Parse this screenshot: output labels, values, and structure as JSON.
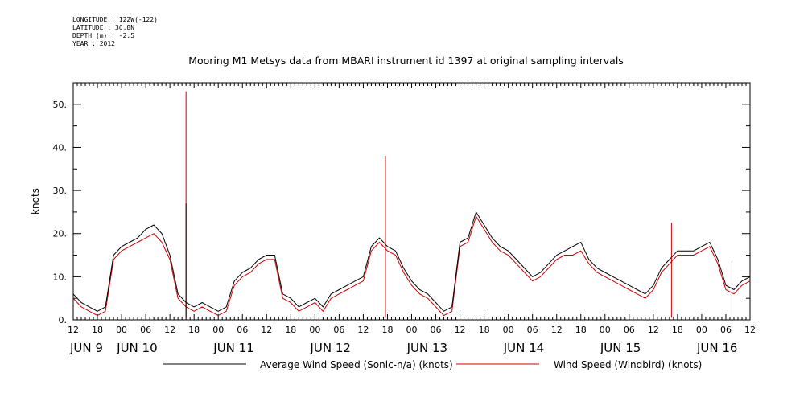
{
  "header": {
    "longitude": "LONGITUDE : 122W(-122)",
    "latitude": "LATITUDE : 36.8N",
    "depth": "DEPTH (m) : -2.5",
    "year": "YEAR : 2012"
  },
  "chart_data": {
    "type": "line",
    "title": "Mooring M1 Metsys data from MBARI instrument id 1397 at original sampling intervals",
    "ylabel": "knots",
    "xlabel": "",
    "ylim": [
      0,
      55
    ],
    "yticks": [
      0,
      10,
      20,
      30,
      40,
      50
    ],
    "ytick_labels": [
      "0.",
      "10.",
      "20.",
      "30.",
      "40.",
      "50."
    ],
    "xlim_hours": [
      0,
      168
    ],
    "hour_ticks": [
      "12",
      "18",
      "00",
      "06",
      "12",
      "18",
      "00",
      "06",
      "12",
      "18",
      "00",
      "06",
      "12",
      "18",
      "00",
      "06",
      "12",
      "18",
      "00",
      "06",
      "12",
      "18",
      "00",
      "06",
      "12",
      "18",
      "00",
      "06",
      "12"
    ],
    "day_labels": [
      "JUN  9",
      "JUN 10",
      "JUN 11",
      "JUN 12",
      "JUN 13",
      "JUN 14",
      "JUN 15",
      "JUN 16"
    ],
    "legend": {
      "placement": "bottom"
    },
    "colors": {
      "series1": "#000000",
      "series2": "#cc0000"
    },
    "x_hours": [
      0,
      2,
      4,
      6,
      8,
      10,
      12,
      14,
      16,
      18,
      20,
      22,
      24,
      26,
      28,
      30,
      32,
      34,
      36,
      38,
      40,
      42,
      44,
      46,
      48,
      50,
      52,
      54,
      56,
      58,
      60,
      62,
      64,
      66,
      68,
      70,
      72,
      74,
      76,
      78,
      80,
      82,
      84,
      86,
      88,
      90,
      92,
      94,
      96,
      98,
      100,
      102,
      104,
      106,
      108,
      110,
      112,
      114,
      116,
      118,
      120,
      122,
      124,
      126,
      128,
      130,
      132,
      134,
      136,
      138,
      140,
      142,
      144,
      146,
      148,
      150,
      152,
      154,
      156,
      158,
      160,
      162,
      164,
      166,
      168
    ],
    "series": [
      {
        "name": "Average Wind Speed (Sonic-n/a) (knots)",
        "values": [
          6,
          4,
          3,
          2,
          3,
          15,
          17,
          18,
          19,
          21,
          22,
          20,
          15,
          6,
          4,
          3,
          4,
          3,
          2,
          3,
          9,
          11,
          12,
          14,
          15,
          15,
          6,
          5,
          3,
          4,
          5,
          3,
          6,
          7,
          8,
          9,
          10,
          17,
          19,
          17,
          16,
          12,
          9,
          7,
          6,
          4,
          2,
          3,
          18,
          19,
          25,
          22,
          19,
          17,
          16,
          14,
          12,
          10,
          11,
          13,
          15,
          16,
          17,
          18,
          14,
          12,
          11,
          10,
          9,
          8,
          7,
          6,
          8,
          12,
          14,
          16,
          16,
          16,
          17,
          18,
          14,
          8,
          7,
          9,
          10
        ]
      },
      {
        "name": "Wind Speed (Windbird) (knots)",
        "values": [
          5,
          3,
          2,
          1,
          2,
          14,
          16,
          17,
          18,
          19,
          20,
          18,
          14,
          5,
          3,
          2,
          3,
          2,
          1,
          2,
          8,
          10,
          11,
          13,
          14,
          14,
          5,
          4,
          2,
          3,
          4,
          2,
          5,
          6,
          7,
          8,
          9,
          16,
          18,
          16,
          15,
          11,
          8,
          6,
          5,
          3,
          1,
          2,
          17,
          18,
          24,
          21,
          18,
          16,
          15,
          13,
          11,
          9,
          10,
          12,
          14,
          15,
          15,
          16,
          13,
          11,
          10,
          9,
          8,
          7,
          6,
          5,
          7,
          11,
          13,
          15,
          15,
          15,
          16,
          17,
          13,
          7,
          6,
          8,
          9
        ]
      }
    ],
    "spikes": [
      {
        "series": 1,
        "x_hour": 28,
        "value": 53
      },
      {
        "series": 0,
        "x_hour": 28,
        "value": 27
      },
      {
        "series": 1,
        "x_hour": 77.5,
        "value": 38
      },
      {
        "series": 1,
        "x_hour": 148.5,
        "value": 22.5
      },
      {
        "series": 1,
        "x_hour": 163.5,
        "value": 14
      }
    ]
  }
}
